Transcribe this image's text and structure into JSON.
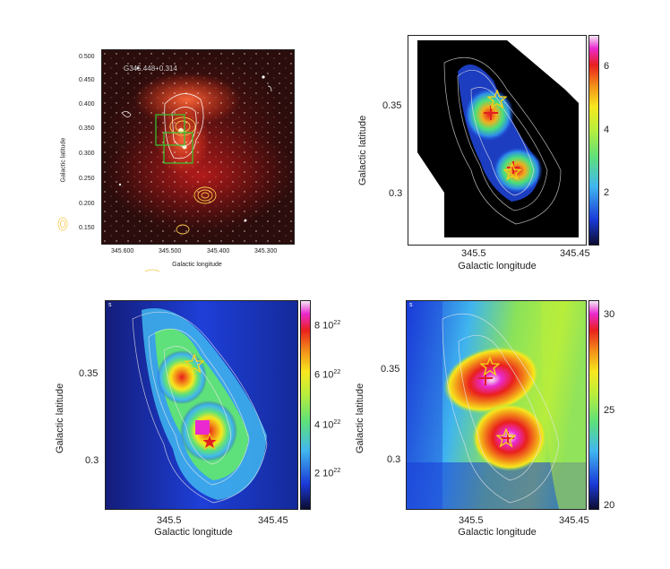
{
  "panels": {
    "a": {
      "source_label": "G345.448+0.314",
      "y_ticks": [
        "0.500",
        "0.450",
        "0.400",
        "0.350",
        "0.300",
        "0.250",
        "0.200",
        "0.150"
      ],
      "x_ticks": [
        "345.600",
        "345.500",
        "345.400",
        "345.300"
      ],
      "xlabel": "Galactic longitude",
      "ylabel": "Galactic latitude"
    },
    "b": {
      "y_ticks": [
        "0.35",
        "0.3"
      ],
      "x_ticks": [
        "345.5",
        "345.45"
      ],
      "xlabel": "Galactic longitude",
      "ylabel": "Galactic latitude",
      "colorbar_ticks": [
        "6",
        "4",
        "2"
      ]
    },
    "c": {
      "y_ticks": [
        "0.35",
        "0.3"
      ],
      "x_ticks": [
        "345.5",
        "345.45"
      ],
      "xlabel": "Galactic longitude",
      "ylabel": "Galactic latitude",
      "colorbar_ticks": [
        {
          "mant": "8 10",
          "exp": "22"
        },
        {
          "mant": "6 10",
          "exp": "22"
        },
        {
          "mant": "4 10",
          "exp": "22"
        },
        {
          "mant": "2 10",
          "exp": "22"
        }
      ],
      "corner_label": "s"
    },
    "d": {
      "y_ticks": [
        "0.35",
        "0.3"
      ],
      "x_ticks": [
        "345.5",
        "345.45"
      ],
      "xlabel": "Galactic longitude",
      "ylabel": "Galactic latitude",
      "colorbar_ticks": [
        "30",
        "25",
        "20"
      ],
      "corner_label": "s"
    }
  },
  "colors": {
    "star": "#f2d21a",
    "cross": "#e02020",
    "contour": "#e8e8e8",
    "optical_contour": "#f5c94a",
    "box": "#33cc33"
  }
}
